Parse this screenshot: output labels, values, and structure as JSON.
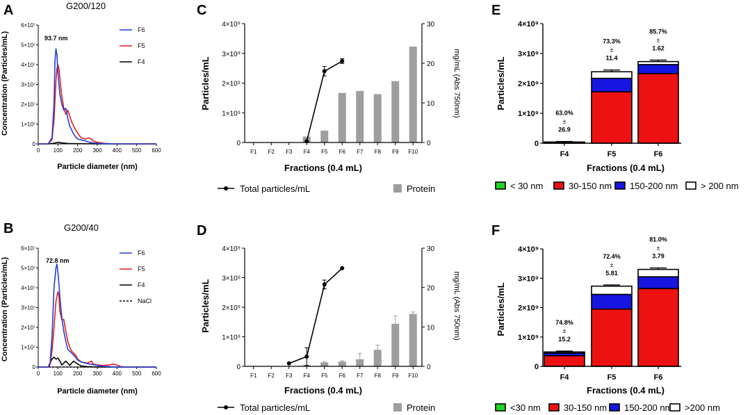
{
  "chart_data": [
    {
      "id": "A",
      "type": "line",
      "panel_label": "A",
      "title": "G200/120",
      "xlabel": "Particle diameter (nm)",
      "ylabel": "Concentration (Particles/mL)",
      "xlim": [
        0,
        600
      ],
      "ylim": [
        0,
        60000000
      ],
      "xticks": [
        "0",
        "100",
        "200",
        "300",
        "400",
        "500",
        "600"
      ],
      "yticks": [
        "0",
        "1×10⁷",
        "2×10⁷",
        "3×10⁷",
        "4×10⁷",
        "5×10⁷",
        "6×10⁷"
      ],
      "annotation": "93.7 nm",
      "series": [
        {
          "name": "F6",
          "color": "#1f3fd8",
          "x": [
            0,
            50,
            70,
            80,
            85,
            90,
            95,
            100,
            105,
            110,
            120,
            130,
            140,
            150,
            160,
            170,
            180,
            190,
            200,
            220,
            240,
            260,
            280,
            300,
            330,
            360,
            400,
            450,
            500,
            550,
            600
          ],
          "y": [
            0,
            0,
            3000000,
            20000000,
            42000000,
            48000000,
            45000000,
            36000000,
            30000000,
            25000000,
            20000000,
            17000000,
            18000000,
            13000000,
            9000000,
            7000000,
            5000000,
            3500000,
            2500000,
            2000000,
            1500000,
            800000,
            500000,
            300000,
            100000,
            50000,
            0,
            0,
            0,
            0,
            0
          ]
        },
        {
          "name": "F5",
          "color": "#e41b1b",
          "x": [
            0,
            50,
            70,
            80,
            90,
            95,
            100,
            105,
            110,
            115,
            120,
            130,
            140,
            150,
            160,
            170,
            180,
            190,
            200,
            210,
            220,
            240,
            260,
            280,
            300,
            330,
            360,
            400,
            450,
            500,
            550,
            600
          ],
          "y": [
            0,
            0,
            2000000,
            12000000,
            32000000,
            38000000,
            40000000,
            38000000,
            33000000,
            28000000,
            24000000,
            18000000,
            15000000,
            17000000,
            14000000,
            11000000,
            9000000,
            7000000,
            5500000,
            4000000,
            3000000,
            2500000,
            3000000,
            1500000,
            800000,
            300000,
            100000,
            0,
            0,
            0,
            0,
            0
          ]
        },
        {
          "name": "F4",
          "color": "#000000",
          "x": [
            0,
            50,
            80,
            100,
            120,
            150,
            200,
            300,
            400,
            500,
            600
          ],
          "y": [
            0,
            0,
            300000,
            800000,
            500000,
            200000,
            100000,
            0,
            0,
            0,
            0
          ]
        }
      ]
    },
    {
      "id": "B",
      "type": "line",
      "panel_label": "B",
      "title": "G200/40",
      "xlabel": "Particle diameter (nm)",
      "ylabel": "Concentration (Particles/mL)",
      "xlim": [
        0,
        600
      ],
      "ylim": [
        0,
        60000000
      ],
      "xticks": [
        "0",
        "100",
        "200",
        "300",
        "400",
        "500",
        "600"
      ],
      "yticks": [
        "0",
        "1×10⁷",
        "2×10⁷",
        "3×10⁷",
        "4×10⁷",
        "5×10⁷",
        "6×10⁷"
      ],
      "annotation": "72.8 nm",
      "series": [
        {
          "name": "F6",
          "color": "#1f3fd8",
          "x": [
            0,
            50,
            60,
            70,
            80,
            90,
            95,
            100,
            105,
            110,
            120,
            130,
            140,
            150,
            160,
            170,
            180,
            190,
            200,
            220,
            240,
            260,
            280,
            300,
            330,
            360,
            400,
            450,
            500,
            550,
            600
          ],
          "y": [
            0,
            0,
            2000000,
            15000000,
            40000000,
            50000000,
            52000000,
            48000000,
            42000000,
            35000000,
            25000000,
            18000000,
            13000000,
            9000000,
            8000000,
            7000000,
            6000000,
            5000000,
            3500000,
            2500000,
            2000000,
            1500000,
            1200000,
            800000,
            400000,
            200000,
            0,
            0,
            0,
            0,
            0
          ]
        },
        {
          "name": "F5",
          "color": "#e41b1b",
          "x": [
            0,
            50,
            60,
            70,
            80,
            90,
            100,
            105,
            110,
            120,
            130,
            140,
            150,
            160,
            170,
            180,
            190,
            200,
            220,
            250,
            270,
            280,
            300,
            330,
            360,
            380,
            400,
            420,
            450,
            500,
            550,
            600
          ],
          "y": [
            0,
            0,
            1000000,
            8000000,
            20000000,
            33000000,
            38000000,
            36000000,
            28000000,
            24000000,
            24000000,
            18000000,
            13000000,
            10000000,
            8000000,
            7000000,
            6000000,
            4000000,
            2500000,
            2000000,
            3000000,
            1500000,
            1000000,
            800000,
            1000000,
            1500000,
            1000000,
            200000,
            0,
            0,
            0,
            0
          ]
        },
        {
          "name": "F4",
          "color": "#000000",
          "x": [
            0,
            50,
            60,
            70,
            80,
            90,
            100,
            110,
            120,
            130,
            140,
            150,
            160,
            170,
            180,
            200,
            220,
            250,
            300,
            350,
            600
          ],
          "y": [
            0,
            0,
            2000000,
            4000000,
            5000000,
            4000000,
            4500000,
            3000000,
            1000000,
            2000000,
            3000000,
            2000000,
            800000,
            2000000,
            3000000,
            1500000,
            500000,
            200000,
            0,
            0,
            0
          ]
        },
        {
          "name": "NaCl",
          "color": "#000000",
          "dashed": true,
          "x": [
            0,
            600
          ],
          "y": [
            0,
            0
          ]
        }
      ]
    },
    {
      "id": "C",
      "type": "bar+line",
      "panel_label": "C",
      "xlabel": "Fractions (0.4 mL)",
      "ylabel": "Particles/mL",
      "y2label": "mg/mL (Abs 750nm)",
      "categories": [
        "F1",
        "F2",
        "F3",
        "F4",
        "F5",
        "F6",
        "F7",
        "F8",
        "F9",
        "F10"
      ],
      "yticks": [
        "0",
        "1×10⁹",
        "2×10⁹",
        "3×10⁹",
        "4×10⁹"
      ],
      "ylim": [
        0,
        4000000000
      ],
      "y2ticks": [
        "0",
        "10",
        "20",
        "30"
      ],
      "y2lim": [
        0,
        30
      ],
      "protein": [
        0.1,
        0.1,
        0.1,
        1.5,
        3.0,
        12.5,
        13.0,
        12.2,
        15.5,
        24.2
      ],
      "protein_err": [
        0,
        0,
        0,
        0,
        0,
        0,
        0,
        0,
        0,
        0
      ],
      "particles": {
        "categories": [
          "F4",
          "F5",
          "F6"
        ],
        "values": [
          40000000,
          2400000000,
          2740000000
        ],
        "err": [
          0,
          160000000,
          80000000
        ]
      },
      "legend": {
        "particles": "Total particles/mL",
        "protein": "Protein"
      }
    },
    {
      "id": "D",
      "type": "bar+line",
      "panel_label": "D",
      "xlabel": "Fractions (0.4 mL)",
      "ylabel": "Particles/mL",
      "y2label": "mg/mL (Abs 750nm)",
      "categories": [
        "F1",
        "F2",
        "F3",
        "F4",
        "F5",
        "F6",
        "F7",
        "F8",
        "F9",
        "F10"
      ],
      "yticks": [
        "0",
        "1×10⁹",
        "2×10⁹",
        "3×10⁹",
        "4×10⁹"
      ],
      "ylim": [
        0,
        4000000000
      ],
      "y2ticks": [
        "0",
        "10",
        "20",
        "30"
      ],
      "y2lim": [
        0,
        30
      ],
      "protein": [
        0.1,
        0.1,
        0.1,
        0.3,
        1.0,
        1.2,
        1.8,
        4.2,
        10.8,
        13.3
      ],
      "protein_err": [
        0,
        0,
        0,
        0,
        0.2,
        0.2,
        1.5,
        1.2,
        2.0,
        0.5
      ],
      "particles": {
        "categories": [
          "F3",
          "F4",
          "F5",
          "F6"
        ],
        "values": [
          100000000,
          330000000,
          2770000000,
          3320000000
        ],
        "err": [
          0,
          300000000,
          150000000,
          0
        ]
      },
      "legend": {
        "particles": "Total particles/mL",
        "protein": "Protein"
      }
    },
    {
      "id": "E",
      "type": "stacked-bar",
      "panel_label": "E",
      "xlabel": "Fractions (0.4 mL)",
      "ylabel": "Particles/mL",
      "categories": [
        "F4",
        "F5",
        "F6"
      ],
      "yticks": [
        "0",
        "1×10⁹",
        "2×10⁹",
        "3×10⁹",
        "4×10⁹"
      ],
      "ylim": [
        0,
        4000000000
      ],
      "series": [
        {
          "name": "< 30 nm",
          "color": "#22d32a",
          "values": [
            0,
            0,
            0
          ]
        },
        {
          "name": "30-150 nm",
          "color": "#ee1111",
          "values": [
            30000000,
            1720000000,
            2330000000
          ]
        },
        {
          "name": "150-200 nm",
          "color": "#1616e0",
          "values": [
            5000000,
            450000000,
            300000000
          ]
        },
        {
          "name": "> 200 nm",
          "color": "#ffffff",
          "values": [
            5000000,
            220000000,
            100000000
          ]
        }
      ],
      "err": [
        15000000,
        60000000,
        50000000
      ],
      "pct_labels": [
        {
          "pct": "63.0%",
          "pm": "±",
          "sd": "26.9"
        },
        {
          "pct": "73.3%",
          "pm": "±",
          "sd": "11.4"
        },
        {
          "pct": "85.7%",
          "pm": "±",
          "sd": "1.62"
        }
      ]
    },
    {
      "id": "F",
      "type": "stacked-bar",
      "panel_label": "F",
      "xlabel": "Fractions (0.4 mL)",
      "ylabel": "Particles/mL",
      "categories": [
        "F4",
        "F5",
        "F6"
      ],
      "yticks": [
        "0",
        "1×10⁹",
        "2×10⁹",
        "3×10⁹",
        "4×10⁹"
      ],
      "ylim": [
        0,
        4000000000
      ],
      "series": [
        {
          "name": "<30 nm",
          "color": "#22d32a",
          "values": [
            0,
            0,
            0
          ]
        },
        {
          "name": "30-150 nm",
          "color": "#ee1111",
          "values": [
            360000000,
            1950000000,
            2650000000
          ]
        },
        {
          "name": "150-200 nm",
          "color": "#1616e0",
          "values": [
            90000000,
            500000000,
            400000000
          ]
        },
        {
          "name": ">200 nm",
          "color": "#ffffff",
          "values": [
            40000000,
            280000000,
            250000000
          ]
        }
      ],
      "err": [
        30000000,
        40000000,
        50000000
      ],
      "pct_labels": [
        {
          "pct": "74.8%",
          "pm": "±",
          "sd": "15.2"
        },
        {
          "pct": "72.4%",
          "pm": "±",
          "sd": "5.81"
        },
        {
          "pct": "81.0%",
          "pm": "±",
          "sd": "3.79"
        }
      ]
    }
  ]
}
